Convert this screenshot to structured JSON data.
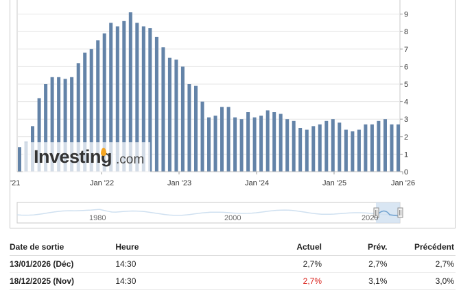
{
  "chart_data": {
    "type": "bar",
    "bars_color": "#6383a8",
    "y_ticks": [
      "0",
      "1",
      "2",
      "3",
      "4",
      "5",
      "6",
      "7",
      "8",
      "9"
    ],
    "ylim": [
      0,
      9.4
    ],
    "x_tick_labels": [
      "'21",
      "Jan '22",
      "Jan '23",
      "Jan '24",
      "Jan '25",
      "Jan '26"
    ],
    "values": [
      1.4,
      1.7,
      2.6,
      4.2,
      5.0,
      5.4,
      5.4,
      5.3,
      5.4,
      6.2,
      6.8,
      7.0,
      7.5,
      7.9,
      8.5,
      8.3,
      8.6,
      9.1,
      8.5,
      8.3,
      8.2,
      7.7,
      7.1,
      6.5,
      6.4,
      6.0,
      5.0,
      4.9,
      4.0,
      3.1,
      3.2,
      3.7,
      3.7,
      3.1,
      3.0,
      3.4,
      3.1,
      3.2,
      3.5,
      3.4,
      3.3,
      3.0,
      2.9,
      2.5,
      2.4,
      2.6,
      2.7,
      2.9,
      3.0,
      2.8,
      2.4,
      2.3,
      2.4,
      2.7,
      2.7,
      2.9,
      3.0,
      2.7,
      2.7
    ]
  },
  "navigator": {
    "labels": [
      "1980",
      "2000",
      "2020"
    ]
  },
  "watermark": {
    "word": "Investing",
    "suffix": ".com"
  },
  "table": {
    "headers": {
      "release_date": "Date de sortie",
      "time": "Heure",
      "actual": "Actuel",
      "forecast": "Prév.",
      "previous": "Précédent"
    },
    "rows": [
      {
        "release_date": "13/01/2026 (Déc)",
        "time": "14:30",
        "actual": "2,7%",
        "forecast": "2,7%",
        "previous": "2,7%"
      },
      {
        "release_date": "18/12/2025 (Nov)",
        "time": "14:30",
        "actual": "2,7%",
        "forecast": "3,1%",
        "previous": "3,0%"
      }
    ]
  },
  "colors": {
    "bar": "#6383a8",
    "grid": "#e4e4e4",
    "navigator_fill": "#cfe0f0",
    "navigator_line": "#6ea0cf",
    "negative_value": "#d91e18"
  }
}
